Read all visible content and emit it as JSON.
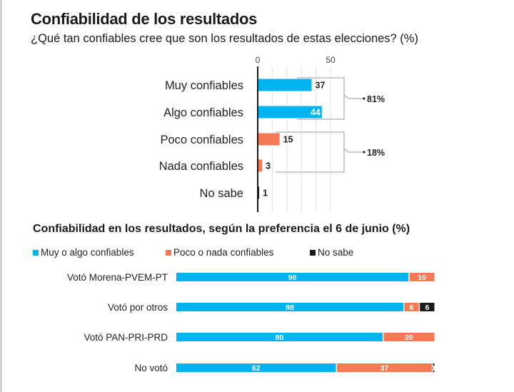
{
  "header": {
    "title": "Confiabilidad de los resultados",
    "subtitle": "¿Qué tan confiables cree que son los resultados de estas elecciones? (%)",
    "subtitle2": "Confiabilidad en los resultados, según la preferencia el 6 de junio (%)"
  },
  "colors": {
    "positive": "#00b4ef",
    "negative": "#f47a55",
    "no_sabe": "#1a1a1a"
  },
  "legend": [
    {
      "label": "Muy o algo confiables",
      "color": "#00b4ef"
    },
    {
      "label": "Poco o nada confiables",
      "color": "#f47a55"
    },
    {
      "label": "No sabe",
      "color": "#1a1a1a"
    }
  ],
  "chart_data": [
    {
      "type": "bar",
      "orientation": "horizontal",
      "title": "¿Qué tan confiables cree que son los resultados de estas elecciones? (%)",
      "categories": [
        "Muy confiables",
        "Algo confiables",
        "Poco confiables",
        "Nada confiables",
        "No sabe"
      ],
      "values": [
        37,
        44,
        15,
        3,
        1
      ],
      "bar_colors": [
        "#00b4ef",
        "#00b4ef",
        "#f47a55",
        "#f47a55",
        "#1a1a1a"
      ],
      "x_ticks": [
        "0",
        "50"
      ],
      "xlim": [
        0,
        55
      ],
      "grid": true,
      "annotations": [
        {
          "label": "81%",
          "groups": [
            "Muy confiables",
            "Algo confiables"
          ]
        },
        {
          "label": "18%",
          "groups": [
            "Poco confiables",
            "Nada confiables"
          ]
        }
      ]
    },
    {
      "type": "bar",
      "orientation": "horizontal",
      "stacked": true,
      "title": "Confiabilidad en los resultados, según la preferencia el 6 de junio (%)",
      "categories": [
        "Votó Morena-PVEM-PT",
        "Votó por otros",
        "Votó PAN-PRI-PRD",
        "No votó"
      ],
      "series": [
        {
          "name": "Muy o algo confiables",
          "values": [
            90,
            88,
            80,
            62
          ]
        },
        {
          "name": "Poco o nada confiables",
          "values": [
            10,
            6,
            20,
            37
          ]
        },
        {
          "name": "No sabe",
          "values": [
            0,
            6,
            0,
            1
          ]
        }
      ],
      "xlim": [
        0,
        100
      ],
      "legend_position": "top-left"
    }
  ]
}
